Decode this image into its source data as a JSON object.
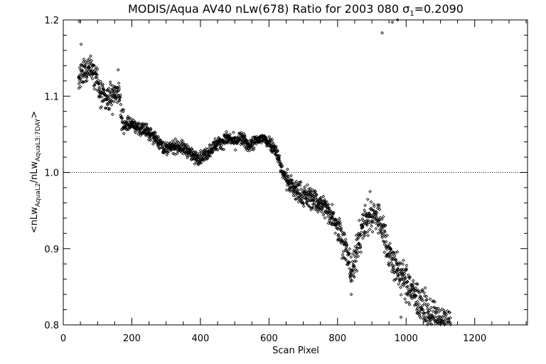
{
  "chart_data": {
    "type": "scatter",
    "title": {
      "main": "MODIS/Aqua AV40 nLw(678) Ratio for 2003 080 ",
      "sigma": "σ",
      "sigma_sub": "1",
      "rest": "=0.2090"
    },
    "xlabel": "Scan Pixel",
    "ylabel": {
      "pre": "<nLw",
      "sub1": "AquaL2",
      "mid": "/nLw",
      "sub2": "AquaL3:7DAY",
      "post": ">"
    },
    "xlim": [
      0,
      1354
    ],
    "ylim": [
      0.8,
      1.2
    ],
    "xticks": [
      "0",
      "200",
      "400",
      "600",
      "800",
      "1000",
      "1200"
    ],
    "yticks": [
      "0.8",
      "0.9",
      "1.0",
      "1.1",
      "1.2"
    ],
    "reference_line": {
      "y": 1.0,
      "style": "dotted"
    },
    "marker": "diamond",
    "trend_x": [
      45,
      60,
      75,
      90,
      110,
      130,
      145,
      160,
      175,
      190,
      210,
      240,
      270,
      300,
      330,
      360,
      380,
      400,
      420,
      440,
      460,
      480,
      500,
      520,
      540,
      560,
      580,
      600,
      620,
      640,
      660,
      680,
      700,
      730,
      760,
      790,
      810,
      825,
      840,
      850,
      860,
      875,
      890,
      905,
      920,
      935,
      950,
      970,
      1000,
      1030,
      1060,
      1090,
      1130
    ],
    "trend_y": [
      1.12,
      1.13,
      1.14,
      1.135,
      1.1,
      1.095,
      1.1,
      1.11,
      1.06,
      1.065,
      1.06,
      1.055,
      1.045,
      1.03,
      1.035,
      1.03,
      1.02,
      1.02,
      1.025,
      1.035,
      1.04,
      1.045,
      1.04,
      1.045,
      1.035,
      1.04,
      1.045,
      1.04,
      1.03,
      1.0,
      0.985,
      0.975,
      0.97,
      0.965,
      0.955,
      0.94,
      0.92,
      0.895,
      0.87,
      0.88,
      0.91,
      0.93,
      0.94,
      0.945,
      0.94,
      0.92,
      0.895,
      0.875,
      0.855,
      0.835,
      0.815,
      0.805,
      0.8
    ],
    "outliers": [
      [
        47,
        1.198
      ],
      [
        52,
        1.168
      ],
      [
        46,
        1.125
      ],
      [
        930,
        1.183
      ],
      [
        960,
        1.197
      ],
      [
        975,
        1.2
      ],
      [
        840,
        0.84
      ],
      [
        895,
        0.975
      ],
      [
        985,
        0.81
      ]
    ]
  }
}
